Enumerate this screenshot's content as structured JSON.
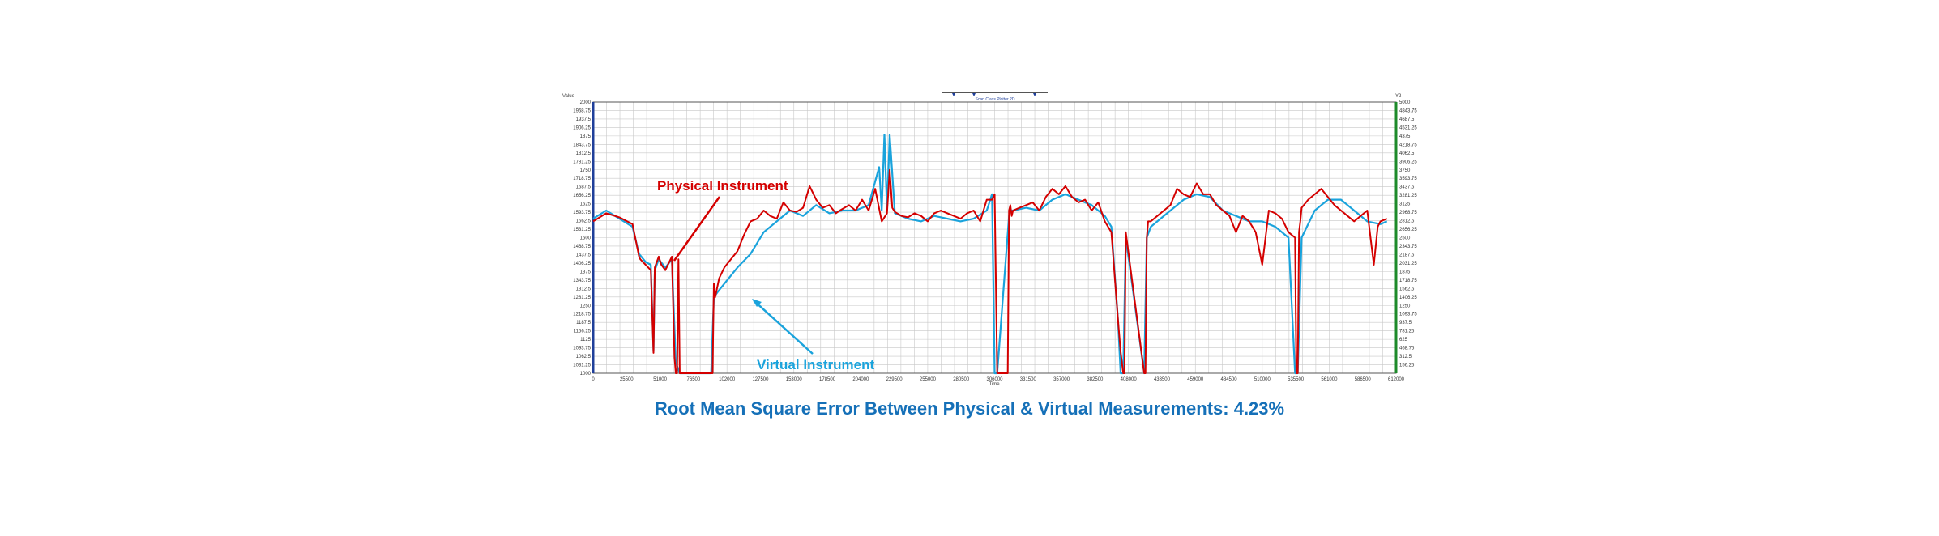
{
  "toolbar": {
    "title": "Scan Class Plotter 2D"
  },
  "colors": {
    "physical": "#d40000",
    "virtual": "#1aa3dc",
    "caption": "#1570b8",
    "left_axis": "#1f3f9a",
    "right_axis": "#1d8a2a",
    "grid": "#c8c8c8"
  },
  "annotations": {
    "physical": "Physical Instrument",
    "virtual": "Virtual Instrument"
  },
  "caption": "Root Mean Square Error Between Physical & Virtual Measurements: 4.23%",
  "chart_data": {
    "type": "line",
    "title": "",
    "xlabel": "Time",
    "ylabel": "Value",
    "y2label": "Y2",
    "xlim": [
      0,
      612000
    ],
    "ylim": [
      1000,
      2000
    ],
    "y2lim": [
      0,
      5000
    ],
    "grid": true,
    "x_ticks": [
      "0",
      "25500",
      "51000",
      "76500",
      "102000",
      "127500",
      "153000",
      "178500",
      "204000",
      "229500",
      "255000",
      "280500",
      "306000",
      "331500",
      "357000",
      "382500",
      "408000",
      "433500",
      "459000",
      "484500",
      "510000",
      "535500",
      "561000",
      "586500",
      "612000"
    ],
    "y_ticks": [
      "2000",
      "1968.75",
      "1937.5",
      "1906.25",
      "1875",
      "1843.75",
      "1812.5",
      "1781.25",
      "1750",
      "1718.75",
      "1687.5",
      "1656.25",
      "1625",
      "1593.75",
      "1562.5",
      "1531.25",
      "1500",
      "1468.75",
      "1437.5",
      "1406.25",
      "1375",
      "1343.75",
      "1312.5",
      "1281.25",
      "1250",
      "1218.75",
      "1187.5",
      "1156.25",
      "1125",
      "1093.75",
      "1062.5",
      "1031.25",
      "1000"
    ],
    "y2_ticks": [
      "5000",
      "4843.75",
      "4687.5",
      "4531.25",
      "4375",
      "4218.75",
      "4062.5",
      "3906.25",
      "3750",
      "3593.75",
      "3437.5",
      "3281.25",
      "3125",
      "2968.75",
      "2812.5",
      "2656.25",
      "2500",
      "2343.75",
      "2187.5",
      "2031.25",
      "1875",
      "1718.75",
      "1562.5",
      "1406.25",
      "1250",
      "1093.75",
      "937.5",
      "781.25",
      "625",
      "468.75",
      "312.5",
      "156.25"
    ],
    "series": [
      {
        "name": "Physical Instrument",
        "x": [
          0,
          10000,
          20000,
          30000,
          35000,
          36000,
          40000,
          44000,
          46000,
          47000,
          50000,
          52000,
          55000,
          60000,
          62000,
          63000,
          64000,
          65000,
          66000,
          90000,
          91000,
          92000,
          93000,
          96000,
          100000,
          105000,
          110000,
          115000,
          120000,
          125000,
          130000,
          135000,
          140000,
          145000,
          150000,
          155000,
          160000,
          165000,
          170000,
          175000,
          180000,
          185000,
          188000,
          195000,
          200000,
          205000,
          210000,
          215000,
          220000,
          224000,
          226000,
          228000,
          230000,
          235000,
          240000,
          245000,
          250000,
          255000,
          260000,
          265000,
          270000,
          275000,
          280000,
          285000,
          290000,
          295000,
          300000,
          304000,
          306000,
          308000,
          316000,
          317000,
          318000,
          319000,
          320000,
          325000,
          330000,
          335000,
          340000,
          345000,
          350000,
          355000,
          360000,
          365000,
          370000,
          375000,
          380000,
          385000,
          390000,
          395000,
          400000,
          402000,
          404000,
          405000,
          406000,
          420000,
          421000,
          422000,
          423000,
          425000,
          430000,
          435000,
          440000,
          445000,
          450000,
          455000,
          460000,
          465000,
          470000,
          475000,
          480000,
          485000,
          490000,
          495000,
          500000,
          505000,
          510000,
          515000,
          520000,
          525000,
          530000,
          535000,
          536000,
          537000,
          538000,
          539000,
          540000,
          545000,
          550000,
          555000,
          560000,
          565000,
          570000,
          575000,
          580000,
          585000,
          590000,
          595000,
          598000,
          600000,
          605000
        ],
        "y": [
          1560,
          1590,
          1575,
          1550,
          1430,
          1420,
          1400,
          1380,
          1075,
          1390,
          1430,
          1400,
          1380,
          1430,
          1060,
          1000,
          1000,
          1420,
          1000,
          1000,
          1000,
          1330,
          1280,
          1350,
          1390,
          1420,
          1450,
          1510,
          1560,
          1570,
          1600,
          1580,
          1570,
          1630,
          1600,
          1595,
          1610,
          1690,
          1640,
          1610,
          1620,
          1590,
          1600,
          1620,
          1600,
          1640,
          1600,
          1680,
          1560,
          1590,
          1750,
          1610,
          1595,
          1580,
          1575,
          1590,
          1580,
          1560,
          1590,
          1600,
          1590,
          1580,
          1570,
          1590,
          1600,
          1560,
          1640,
          1640,
          1660,
          1000,
          1000,
          1600,
          1620,
          1580,
          1600,
          1610,
          1620,
          1630,
          1600,
          1650,
          1680,
          1660,
          1690,
          1650,
          1630,
          1640,
          1600,
          1630,
          1560,
          1520,
          1200,
          1080,
          1000,
          1000,
          1520,
          1000,
          1000,
          1500,
          1560,
          1560,
          1580,
          1600,
          1620,
          1680,
          1660,
          1650,
          1700,
          1660,
          1660,
          1620,
          1600,
          1580,
          1520,
          1580,
          1560,
          1520,
          1400,
          1600,
          1590,
          1570,
          1520,
          1500,
          1000,
          1000,
          1520,
          1560,
          1610,
          1640,
          1660,
          1680,
          1650,
          1620,
          1600,
          1580,
          1560,
          1580,
          1600,
          1400,
          1540,
          1560,
          1570
        ]
      },
      {
        "name": "Virtual Instrument",
        "x": [
          0,
          10000,
          20000,
          30000,
          35000,
          40000,
          44000,
          46000,
          47000,
          50000,
          55000,
          60000,
          63000,
          66000,
          90000,
          92000,
          95000,
          100000,
          105000,
          110000,
          120000,
          130000,
          140000,
          150000,
          160000,
          170000,
          180000,
          190000,
          200000,
          210000,
          218000,
          220000,
          222000,
          224000,
          226000,
          230000,
          240000,
          250000,
          260000,
          270000,
          280000,
          290000,
          300000,
          304000,
          306000,
          308000,
          317000,
          318000,
          320000,
          330000,
          340000,
          350000,
          360000,
          370000,
          380000,
          390000,
          395000,
          400000,
          402000,
          404000,
          406000,
          420000,
          422000,
          425000,
          430000,
          440000,
          450000,
          460000,
          470000,
          480000,
          490000,
          500000,
          510000,
          520000,
          530000,
          535000,
          537000,
          540000,
          550000,
          560000,
          570000,
          580000,
          590000,
          600000,
          605000
        ],
        "y": [
          1570,
          1600,
          1570,
          1540,
          1440,
          1410,
          1400,
          1080,
          1380,
          1420,
          1390,
          1420,
          1040,
          1000,
          1000,
          1280,
          1300,
          1330,
          1360,
          1390,
          1440,
          1520,
          1560,
          1600,
          1580,
          1620,
          1590,
          1600,
          1600,
          1620,
          1760,
          1600,
          1880,
          1600,
          1880,
          1590,
          1570,
          1560,
          1580,
          1570,
          1560,
          1570,
          1600,
          1660,
          1000,
          1000,
          1580,
          1600,
          1600,
          1610,
          1600,
          1640,
          1660,
          1640,
          1620,
          1580,
          1540,
          1200,
          1000,
          1000,
          1500,
          1000,
          1500,
          1540,
          1560,
          1600,
          1640,
          1660,
          1650,
          1600,
          1580,
          1560,
          1560,
          1540,
          1500,
          1000,
          1000,
          1500,
          1600,
          1640,
          1640,
          1600,
          1560,
          1550,
          1560
        ]
      }
    ]
  }
}
